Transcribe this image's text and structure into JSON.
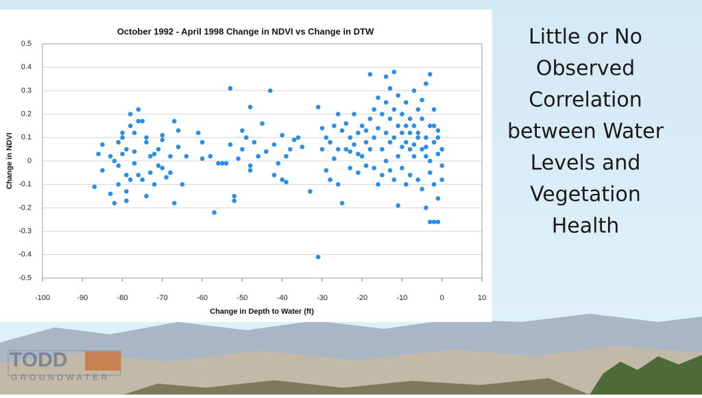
{
  "chart_data": {
    "type": "scatter",
    "title": "October 1992 - April 1998 Change in NDVI vs Change in DTW",
    "xlabel": "Change in Depth to Water (ft)",
    "ylabel": "Change in NDVI",
    "color": "#2a8de8",
    "grid": true,
    "xlim": [
      -100,
      10
    ],
    "ylim": [
      -0.5,
      0.5
    ],
    "xticks": [
      -100,
      -90,
      -80,
      -70,
      -60,
      -50,
      -40,
      -30,
      -20,
      -10,
      0,
      10
    ],
    "yticks": [
      0.5,
      0.4,
      0.3,
      0.2,
      0.1,
      0,
      -0.1,
      -0.2,
      -0.3,
      -0.4,
      -0.5
    ],
    "x": [
      -87,
      -85,
      -86,
      -85,
      -83,
      -82,
      -82,
      -81,
      -80,
      -80,
      -79,
      -79,
      -78,
      -78,
      -77,
      -77,
      -76,
      -76,
      -75,
      -75,
      -74,
      -74,
      -73,
      -72,
      -72,
      -71,
      -70,
      -70,
      -69,
      -68,
      -67,
      -67,
      -66,
      -65,
      -64,
      -79,
      -80,
      -81,
      -77,
      -76,
      -73,
      -70,
      -68,
      -66,
      -81,
      -83,
      -79,
      -78,
      -74,
      -71,
      -61,
      -60,
      -58,
      -57,
      -56,
      -55,
      -53,
      -53,
      -52,
      -52,
      -51,
      -50,
      -50,
      -49,
      -48,
      -48,
      -47,
      -46,
      -45,
      -44,
      -43,
      -42,
      -41,
      -40,
      -40,
      -39,
      -38,
      -37,
      -36,
      -35,
      -33,
      -31,
      -31,
      -60,
      -54,
      -48,
      -42,
      -39,
      -30,
      -30,
      -29,
      -29,
      -28,
      -28,
      -27,
      -27,
      -26,
      -26,
      -25,
      -25,
      -24,
      -24,
      -23,
      -23,
      -22,
      -22,
      -21,
      -21,
      -20,
      -20,
      -19,
      -19,
      -18,
      -18,
      -18,
      -17,
      -17,
      -17,
      -16,
      -16,
      -16,
      -15,
      -15,
      -15,
      -14,
      -14,
      -14,
      -14,
      -13,
      -13,
      -13,
      -13,
      -12,
      -12,
      -12,
      -12,
      -11,
      -11,
      -11,
      -11,
      -10,
      -10,
      -10,
      -9,
      -9,
      -9,
      -8,
      -8,
      -8,
      -7,
      -7,
      -7,
      -6,
      -6,
      -6,
      -5,
      -5,
      -5,
      -4,
      -4,
      -4,
      -4,
      -3,
      -3,
      -3,
      -3,
      -2,
      -2,
      -2,
      -2,
      -1,
      -1,
      -1,
      -1,
      0,
      0,
      0,
      -1,
      -2,
      -3,
      -4,
      -5,
      -6,
      -7,
      -8,
      -9,
      -10,
      -19,
      -21,
      -23,
      -26
    ],
    "values": [
      -0.11,
      0.07,
      0.03,
      -0.04,
      -0.14,
      -0.18,
      0,
      -0.1,
      0.1,
      0.12,
      0.05,
      -0.06,
      0.15,
      0.2,
      0.12,
      -0.01,
      0.22,
      0.17,
      0.17,
      -0.08,
      0.1,
      -0.15,
      0.02,
      0.03,
      -0.1,
      0.05,
      0.11,
      -0.03,
      -0.07,
      0.02,
      0.17,
      -0.18,
      0.06,
      -0.1,
      0.02,
      -0.13,
      0.03,
      -0.02,
      0.04,
      -0.06,
      -0.05,
      0.09,
      -0.05,
      0.13,
      0.08,
      0.02,
      -0.17,
      -0.08,
      0.08,
      -0.02,
      0.12,
      0.08,
      0.02,
      -0.22,
      -0.01,
      -0.01,
      0.31,
      0.07,
      -0.15,
      -0.17,
      0.01,
      0.13,
      0.05,
      0.1,
      0.23,
      -0.04,
      0.08,
      0.02,
      0.16,
      0.04,
      0.3,
      0.07,
      -0.01,
      0.11,
      -0.08,
      0.02,
      0.05,
      0.09,
      0.1,
      0.06,
      -0.13,
      0.23,
      -0.41,
      0.01,
      -0.01,
      -0.02,
      -0.06,
      -0.09,
      0.14,
      0.05,
      -0.04,
      0.1,
      0.08,
      -0.08,
      0.15,
      0.01,
      0.2,
      -0.1,
      0.13,
      -0.18,
      0.05,
      0.16,
      0.1,
      -0.03,
      0.2,
      0.07,
      0.12,
      -0.05,
      0.15,
      0.02,
      0.08,
      -0.02,
      0.37,
      0.18,
      0.05,
      0.22,
      0.1,
      -0.03,
      0.27,
      0.14,
      -0.1,
      0.2,
      0.05,
      -0.06,
      0.36,
      0.25,
      0.12,
      0,
      0.31,
      0.18,
      0.08,
      -0.04,
      0.38,
      0.22,
      0.1,
      -0.08,
      0.28,
      0.15,
      0.02,
      -0.19,
      0.2,
      0.12,
      -0.03,
      0.25,
      0.08,
      -0.1,
      0.18,
      0.05,
      -0.06,
      0.3,
      0.15,
      0.02,
      0.1,
      0.22,
      -0.08,
      0.05,
      0.18,
      -0.12,
      0.33,
      0.1,
      -0.2,
      0.02,
      0.37,
      0.15,
      -0.05,
      -0.26,
      0.22,
      0.08,
      -0.1,
      -0.26,
      0.13,
      0.03,
      -0.16,
      -0.26,
      0.05,
      -0.02,
      -0.08,
      0.1,
      0.15,
      0,
      0.06,
      0.26,
      0.12,
      0.07,
      0.12,
      0.15,
      0.06,
      0.13,
      0.03,
      0.04,
      0.05
    ]
  },
  "slide": {
    "heading_lines": [
      "Little or No",
      "Observed",
      "Correlation",
      "between Water",
      "Levels and",
      "Vegetation",
      "Health"
    ],
    "logo": {
      "name": "TODD",
      "tagline": "GROUNDWATER"
    }
  }
}
